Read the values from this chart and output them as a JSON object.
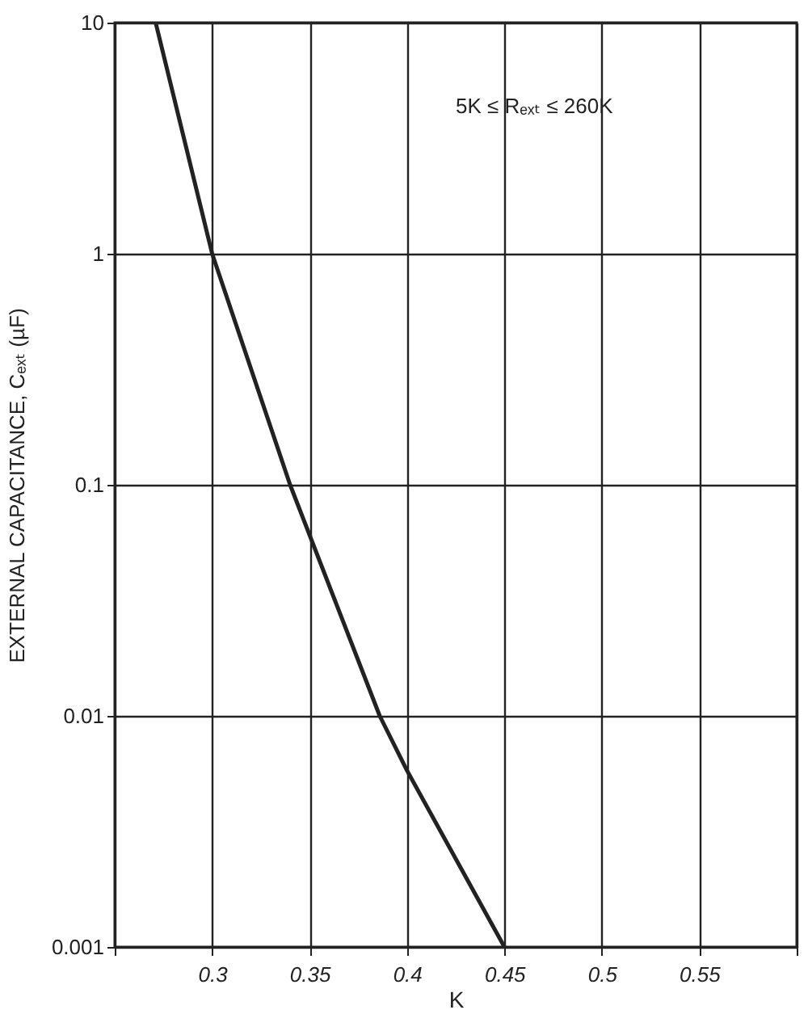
{
  "chart_data": {
    "type": "line",
    "xlabel": "K",
    "ylabel": "EXTERNAL CAPACITANCE, Cₑₓₜ  (µF)",
    "annotations": [
      "5K ≤ Rₑₓₜ ≤ 260K"
    ],
    "series": [
      {
        "color": "#222222",
        "x": [
          0.271,
          0.3,
          0.34,
          0.386,
          0.4,
          0.45
        ],
        "values": [
          10,
          1,
          0.1,
          0.01,
          0.0058,
          0.001
        ]
      }
    ],
    "xlim": [
      0.25,
      0.6
    ],
    "xticks": [
      {
        "value": 0.25,
        "label": null
      },
      0.3,
      0.35,
      0.4,
      0.45,
      0.5,
      0.55,
      {
        "value": 0.6,
        "label": null
      }
    ],
    "ylim": [
      0.001,
      10
    ],
    "yticks": [
      0.001,
      0.01,
      0.1,
      1,
      10
    ],
    "log": "y",
    "grid": true,
    "marker": "none",
    "line_style": "solid",
    "legend": false
  }
}
